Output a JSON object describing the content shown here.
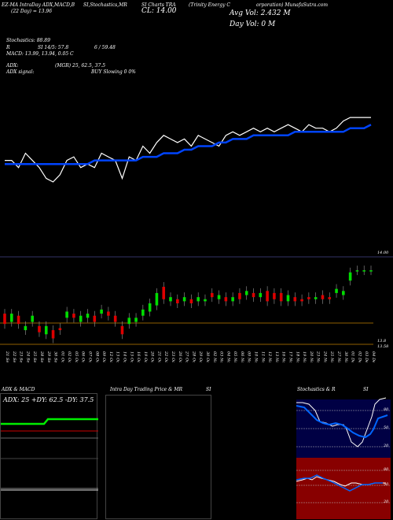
{
  "header": {
    "site_line": "EZ-MA IntraDay ADX,MACD,B",
    "stoch_title": "SI,Stochastics,MR",
    "symbol": "SI Charts TRA",
    "company": "(Trinity Energy C",
    "company_rest": "orporation) MunafaSutra.com",
    "day_range": "CL: 14.00",
    "prev_line": "(22  Day) = 13.96",
    "avg_vol": "Avg Vol: 2.432  M",
    "day_vol": "Day Vol: 0   M"
  },
  "indicators": {
    "stochastics": "Stochastics: 88.89",
    "rsi_label": "R",
    "rsi_value": "SI 14/5: 57.8",
    "stoch_kd": "6 / 59.48",
    "macd": "MACD: 13.99,  13.94, 0.05 C",
    "adx": "ADX:",
    "adx_values": "(MGR) 25, 62.5,  37.5",
    "adx_signal": "ADX  signal:",
    "signal_text": "BUY Slowing 0 0%"
  },
  "price_axis": {
    "top_label": "14.00",
    "low_label_1": "13.8",
    "low_label_2": "13.58"
  },
  "x_dates": [
    "21 Sep",
    "22 Sep",
    "23 Sep",
    "24 Sep",
    "25 Sep",
    "28 Sep",
    "29 Sep",
    "30 Sep",
    "01 Oct",
    "02 Oct",
    "05 Oct",
    "06 Oct",
    "07 Oct",
    "08 Oct",
    "09 Oct",
    "12 Oct",
    "13 Oct",
    "14 Oct",
    "15 Oct",
    "16 Oct",
    "19 Oct",
    "20 Oct",
    "21 Oct",
    "22 Oct",
    "23 Oct",
    "26 Oct",
    "27 Oct",
    "28 Oct",
    "29 Oct",
    "30 Oct",
    "02 Nov",
    "03 Nov",
    "04 Nov",
    "05 Nov",
    "06 Nov",
    "09 Nov",
    "10 Nov",
    "11 Nov",
    "12 Nov",
    "13 Nov",
    "16 Nov",
    "17 Nov",
    "18 Nov",
    "19 Nov",
    "20 Nov",
    "23 Nov",
    "24 Nov",
    "25 Nov",
    "27 Nov",
    "30 Nov",
    "01 Dec",
    "02 Dec",
    "03 Dec",
    "04 Dec"
  ],
  "panels": {
    "adx_title": "ADX  & MACD",
    "adx_values": "ADX: 25  +DY: 62.5  -DY: 37.5",
    "intraday_title": "Intra  Day Trading Price  & MR",
    "intraday_suffix": "SI",
    "stoch_title": "Stochastics & R",
    "stoch_suffix": "SI",
    "stoch_ticks": [
      "80",
      "50",
      "20"
    ],
    "rsi_ticks": [
      "80",
      "50",
      "20"
    ]
  },
  "colors": {
    "up_candle": "#00dd00",
    "down_candle": "#dd0000",
    "ma_line": "#0044ff",
    "price_line": "#ffffff",
    "grid_line": "#c08000",
    "rsi_bg": "#880000",
    "stoch_bg": "#000044"
  },
  "chart_data": {
    "type": "line",
    "title": "",
    "x": [
      "21 Sep",
      "22 Sep",
      "23 Sep",
      "24 Sep",
      "25 Sep",
      "28 Sep",
      "29 Sep",
      "30 Sep",
      "01 Oct",
      "02 Oct",
      "05 Oct",
      "06 Oct",
      "07 Oct",
      "08 Oct",
      "09 Oct",
      "12 Oct",
      "13 Oct",
      "14 Oct",
      "15 Oct",
      "16 Oct",
      "19 Oct",
      "20 Oct",
      "21 Oct",
      "22 Oct",
      "23 Oct",
      "26 Oct",
      "27 Oct",
      "28 Oct",
      "29 Oct",
      "30 Oct",
      "02 Nov",
      "03 Nov",
      "04 Nov",
      "05 Nov",
      "06 Nov",
      "09 Nov",
      "10 Nov",
      "11 Nov",
      "12 Nov",
      "13 Nov",
      "16 Nov",
      "17 Nov",
      "18 Nov",
      "19 Nov",
      "20 Nov",
      "23 Nov",
      "24 Nov",
      "25 Nov",
      "27 Nov",
      "30 Nov",
      "01 Dec",
      "02 Dec",
      "03 Dec",
      "04 Dec"
    ],
    "series": [
      {
        "values": [
          13.88,
          13.88,
          13.86,
          13.9,
          13.88,
          13.86,
          13.83,
          13.82,
          13.84,
          13.88,
          13.89,
          13.86,
          13.87,
          13.86,
          13.9,
          13.89,
          13.88,
          13.83,
          13.89,
          13.88,
          13.92,
          13.9,
          13.93,
          13.95,
          13.94,
          13.93,
          13.94,
          13.92,
          13.95,
          13.94,
          13.93,
          13.92,
          13.95,
          13.96,
          13.95,
          13.96,
          13.97,
          13.96,
          13.97,
          13.96,
          13.97,
          13.98,
          13.97,
          13.96,
          13.98,
          13.97,
          13.97,
          13.96,
          13.97,
          13.99,
          14.0,
          14.0,
          14.0,
          14.0
        ]
      },
      {
        "values": [
          13.87,
          13.87,
          13.87,
          13.87,
          13.87,
          13.87,
          13.87,
          13.87,
          13.87,
          13.87,
          13.87,
          13.87,
          13.87,
          13.88,
          13.88,
          13.88,
          13.88,
          13.88,
          13.88,
          13.88,
          13.89,
          13.89,
          13.89,
          13.9,
          13.9,
          13.9,
          13.91,
          13.91,
          13.92,
          13.92,
          13.92,
          13.93,
          13.93,
          13.94,
          13.94,
          13.94,
          13.95,
          13.95,
          13.95,
          13.95,
          13.95,
          13.95,
          13.96,
          13.96,
          13.96,
          13.96,
          13.96,
          13.96,
          13.96,
          13.96,
          13.97,
          13.97,
          13.97,
          13.98
        ]
      }
    ],
    "candles": [
      {
        "o": 13.74,
        "c": 13.69
      },
      {
        "o": 13.7,
        "c": 13.74
      },
      {
        "o": 13.73,
        "c": 13.69
      },
      {
        "o": 13.66,
        "c": 13.68
      },
      {
        "o": 13.7,
        "c": 13.73
      },
      {
        "o": 13.68,
        "c": 13.65
      },
      {
        "o": 13.64,
        "c": 13.68
      },
      {
        "o": 13.66,
        "c": 13.62
      },
      {
        "o": 13.67,
        "c": 13.66
      },
      {
        "o": 13.72,
        "c": 13.75
      },
      {
        "o": 13.74,
        "c": 13.72
      },
      {
        "o": 13.7,
        "c": 13.73
      },
      {
        "o": 13.72,
        "c": 13.74
      },
      {
        "o": 13.73,
        "c": 13.7
      },
      {
        "o": 13.74,
        "c": 13.76
      },
      {
        "o": 13.75,
        "c": 13.73
      },
      {
        "o": 13.73,
        "c": 13.7
      },
      {
        "o": 13.68,
        "c": 13.64
      },
      {
        "o": 13.69,
        "c": 13.72
      },
      {
        "o": 13.7,
        "c": 13.72
      },
      {
        "o": 13.73,
        "c": 13.76
      },
      {
        "o": 13.75,
        "c": 13.79
      },
      {
        "o": 13.78,
        "c": 13.84
      },
      {
        "o": 13.87,
        "c": 13.81
      },
      {
        "o": 13.8,
        "c": 13.82
      },
      {
        "o": 13.81,
        "c": 13.79
      },
      {
        "o": 13.8,
        "c": 13.82
      },
      {
        "o": 13.81,
        "c": 13.79
      },
      {
        "o": 13.8,
        "c": 13.82
      },
      {
        "o": 13.8,
        "c": 13.81
      },
      {
        "o": 13.84,
        "c": 13.82
      },
      {
        "o": 13.81,
        "c": 13.83
      },
      {
        "o": 13.82,
        "c": 13.8
      },
      {
        "o": 13.8,
        "c": 13.82
      },
      {
        "o": 13.84,
        "c": 13.81
      },
      {
        "o": 13.83,
        "c": 13.85
      },
      {
        "o": 13.84,
        "c": 13.82
      },
      {
        "o": 13.82,
        "c": 13.84
      },
      {
        "o": 13.85,
        "c": 13.8
      },
      {
        "o": 13.84,
        "c": 13.81
      },
      {
        "o": 13.84,
        "c": 13.8
      },
      {
        "o": 13.8,
        "c": 13.83
      },
      {
        "o": 13.82,
        "c": 13.8
      },
      {
        "o": 13.81,
        "c": 13.8
      },
      {
        "o": 13.82,
        "c": 13.81
      },
      {
        "o": 13.81,
        "c": 13.82
      },
      {
        "o": 13.83,
        "c": 13.81
      },
      {
        "o": 13.82,
        "c": 13.81
      },
      {
        "o": 13.84,
        "c": 13.86
      },
      {
        "o": 13.83,
        "c": 13.85
      },
      {
        "o": 13.9,
        "c": 13.94
      },
      {
        "o": 13.95,
        "c": 13.95
      },
      {
        "o": 13.95,
        "c": 13.95
      },
      {
        "o": 13.95,
        "c": 13.95
      }
    ],
    "ylim": [
      13.58,
      14.0
    ]
  }
}
